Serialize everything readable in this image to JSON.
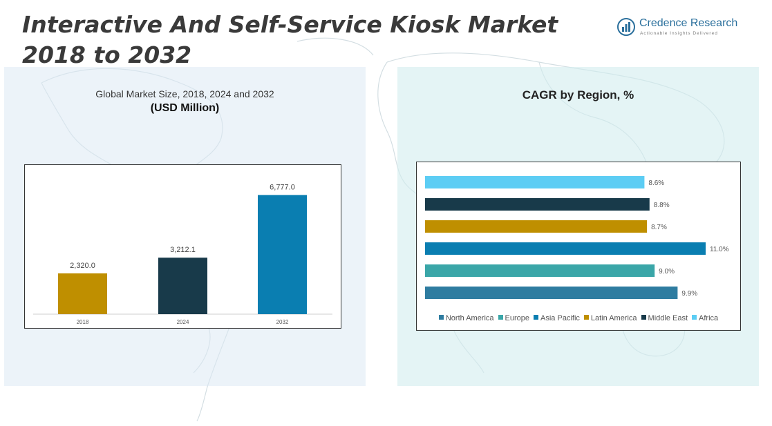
{
  "header": {
    "title": "Interactive And Self-Service Kiosk Market 2018 to 2032",
    "logo_name": "Credence Research",
    "logo_tagline": "Actionable Insights Delivered"
  },
  "colors": {
    "gold": "#bf8f00",
    "dark_navy": "#183a4a",
    "blue": "#0a7eb1",
    "teal": "#3aa6a8",
    "steel_blue": "#2e7ca0",
    "light_blue": "#5ccdf4"
  },
  "chart_data": [
    {
      "type": "bar",
      "title": "Global Market Size, 2018, 2024 and 2032",
      "subtitle": "(USD Million)",
      "categories": [
        "2018",
        "2024",
        "2032"
      ],
      "values": [
        2320.0,
        3212.1,
        6777.0
      ],
      "value_labels": [
        "2,320.0",
        "3,212.1",
        "6,777.0"
      ],
      "bar_colors": [
        "#bf8f00",
        "#183a4a",
        "#0a7eb1"
      ],
      "ylim": [
        0,
        7500
      ],
      "grid": false,
      "legend": "none"
    },
    {
      "type": "bar",
      "orientation": "horizontal",
      "title": "CAGR by Region, %",
      "categories": [
        "Africa",
        "Middle East",
        "Latin America",
        "Asia Pacific",
        "Europe",
        "North America"
      ],
      "values": [
        8.6,
        8.8,
        8.7,
        11.0,
        9.0,
        9.9
      ],
      "value_labels": [
        "8.6%",
        "8.8%",
        "8.7%",
        "11.0%",
        "9.0%",
        "9.9%"
      ],
      "bar_colors": [
        "#5ccdf4",
        "#183a4a",
        "#bf8f00",
        "#0a7eb1",
        "#3aa6a8",
        "#2e7ca0"
      ],
      "xlim": [
        0,
        11.2
      ],
      "grid": false,
      "legend_position": "bottom",
      "legend": [
        {
          "name": "North America",
          "color": "#2e7ca0"
        },
        {
          "name": "Europe",
          "color": "#3aa6a8"
        },
        {
          "name": "Asia Pacific",
          "color": "#0a7eb1"
        },
        {
          "name": "Latin America",
          "color": "#bf8f00"
        },
        {
          "name": "Middle East",
          "color": "#183a4a"
        },
        {
          "name": "Africa",
          "color": "#5ccdf4"
        }
      ]
    }
  ]
}
